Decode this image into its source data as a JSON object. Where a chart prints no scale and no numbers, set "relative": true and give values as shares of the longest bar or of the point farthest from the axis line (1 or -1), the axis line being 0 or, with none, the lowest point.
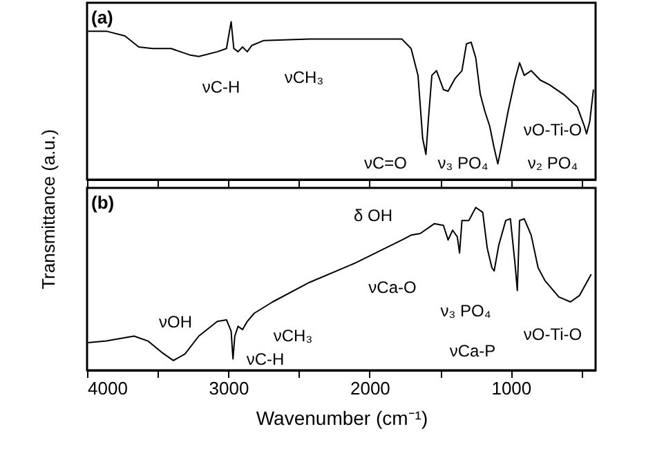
{
  "chart_data": [
    {
      "type": "line",
      "title": "(a)",
      "ylabel": "Transmittance (a.u.)",
      "relative": true,
      "tick_labels": false,
      "grid": false,
      "xlim": [
        4000,
        400
      ],
      "xticks": [
        4000,
        {
          "value": 3500,
          "label": null
        },
        3000,
        {
          "value": 2500,
          "label": null
        },
        2000,
        {
          "value": 1500,
          "label": null
        },
        1000,
        {
          "value": 500,
          "label": null
        }
      ],
      "x": [
        3993,
        3863,
        3732,
        3634,
        3536,
        3405,
        3275,
        3209,
        3078,
        3013,
        2980,
        2961,
        2931,
        2899,
        2866,
        2833,
        2752,
        2425,
        2098,
        1771,
        1706,
        1657,
        1624,
        1601,
        1582,
        1559,
        1526,
        1477,
        1444,
        1395,
        1346,
        1314,
        1281,
        1248,
        1216,
        1183,
        1150,
        1118,
        1092,
        1069,
        1020,
        971,
        938,
        905,
        856,
        791,
        725,
        627,
        529,
        480,
        464,
        441,
        415
      ],
      "series": [
        {
          "color": "#000000",
          "values": [
            0.94,
            0.94,
            0.91,
            0.84,
            0.83,
            0.83,
            0.79,
            0.78,
            0.81,
            0.83,
            1,
            0.83,
            0.81,
            0.84,
            0.81,
            0.85,
            0.88,
            0.89,
            0.89,
            0.89,
            0.83,
            0.66,
            0.26,
            0.16,
            0.4,
            0.66,
            0.69,
            0.57,
            0.56,
            0.64,
            0.69,
            0.86,
            0.87,
            0.77,
            0.54,
            0.43,
            0.34,
            0.2,
            0.1,
            0.2,
            0.43,
            0.63,
            0.74,
            0.66,
            0.69,
            0.63,
            0.6,
            0.54,
            0.46,
            0.34,
            0.29,
            0.37,
            0.57
          ]
        }
      ],
      "annotations": [
        "νC-H",
        "νCH₃",
        "νC=O",
        "ν₃ PO₄",
        "νO-Ti-O",
        "ν₂ PO₄"
      ]
    },
    {
      "type": "line",
      "title": "(b)",
      "xlabel": "Wavenumber (cm⁻¹)",
      "relative": true,
      "tick_labels": "x",
      "grid": false,
      "xlim": [
        4000,
        400
      ],
      "xticks": [
        4000,
        {
          "value": 3500,
          "label": null
        },
        3000,
        {
          "value": 2500,
          "label": null
        },
        2000,
        {
          "value": 1500,
          "label": null
        },
        1000,
        {
          "value": 500,
          "label": null
        }
      ],
      "x": [
        3993,
        3863,
        3667,
        3569,
        3471,
        3389,
        3307,
        3209,
        3078,
        3013,
        2980,
        2967,
        2954,
        2931,
        2899,
        2866,
        2817,
        2686,
        2425,
        2098,
        1771,
        1706,
        1641,
        1542,
        1477,
        1444,
        1412,
        1379,
        1363,
        1346,
        1297,
        1248,
        1199,
        1167,
        1134,
        1118,
        1085,
        1036,
        1003,
        971,
        954,
        938,
        905,
        856,
        807,
        758,
        660,
        578,
        513,
        431
      ],
      "series": [
        {
          "color": "#000000",
          "values": [
            0.17,
            0.18,
            0.21,
            0.18,
            0.11,
            0.06,
            0.1,
            0.21,
            0.3,
            0.31,
            0.24,
            0.07,
            0.21,
            0.27,
            0.25,
            0.3,
            0.35,
            0.42,
            0.54,
            0.66,
            0.8,
            0.83,
            0.84,
            0.9,
            0.89,
            0.8,
            0.86,
            0.82,
            0.72,
            0.92,
            0.92,
            1,
            0.97,
            0.75,
            0.63,
            0.61,
            0.77,
            0.92,
            0.93,
            0.66,
            0.49,
            0.92,
            0.93,
            0.83,
            0.63,
            0.55,
            0.45,
            0.42,
            0.46,
            0.59
          ]
        }
      ],
      "annotations": [
        "νOH",
        "νCH₃",
        "νC-H",
        "δ OH",
        "νCa-O",
        "ν₃ PO₄",
        "νCa-P",
        "νO-Ti-O"
      ]
    }
  ]
}
